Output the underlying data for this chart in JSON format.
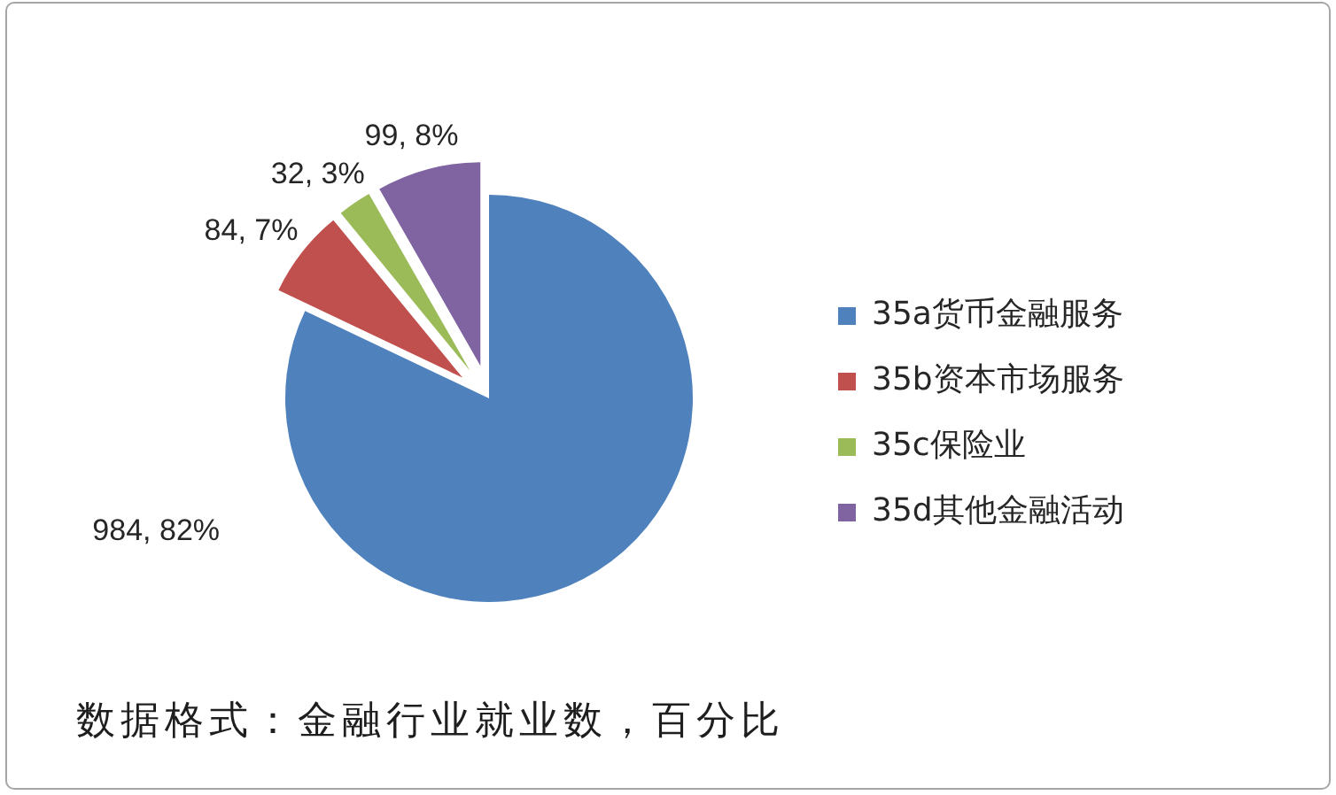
{
  "chart_data": {
    "type": "pie",
    "categories": [
      "35a货币金融服务",
      "35b资本市场服务",
      "35c保险业",
      "35d其他金融活动"
    ],
    "values": [
      984,
      84,
      32,
      99
    ],
    "colors": [
      "#4f81bd",
      "#c0504d",
      "#9bbb59",
      "#8064a2"
    ],
    "value_labels": [
      "984, 82%",
      "84, 7%",
      "32, 3%",
      "99, 8%"
    ],
    "legend": "right",
    "annotations": [
      "数据格式：金融行业就业数，百分比"
    ]
  }
}
